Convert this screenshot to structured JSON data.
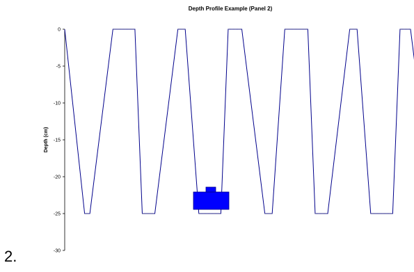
{
  "page_label": "2.",
  "chart_data": {
    "type": "line",
    "title": "Depth Profile Example (Panel 2)",
    "xlabel": "",
    "ylabel": "Depth (cm)",
    "ylim": [
      -30,
      0
    ],
    "yticks": [
      "0",
      "-5",
      "-10",
      "-15",
      "-20",
      "-25",
      "-30"
    ],
    "ytick_values": [
      0,
      -5,
      -10,
      -15,
      -20,
      -25,
      -30
    ],
    "grid": false,
    "legend": "none",
    "series": [
      {
        "color": "#00008b",
        "x": [
          0,
          0.95,
          1.2,
          2.3,
          3.35,
          3.7,
          4.3,
          5.4,
          5.75,
          6.4,
          7.45,
          7.8,
          8.45,
          9.55,
          9.9,
          10.5,
          11.6,
          11.95,
          12.55,
          13.6,
          13.95,
          14.6,
          15.65,
          16.0,
          16.5,
          17.6
        ],
        "y": [
          0,
          -25,
          -25,
          0,
          0,
          -25,
          -25,
          0,
          0,
          -25,
          -25,
          0,
          0,
          -25,
          -25,
          0,
          0,
          -25,
          -25,
          0,
          0,
          -25,
          -25,
          0,
          0,
          -25
        ],
        "values_note_omitted": true
      }
    ],
    "xlim": [
      0,
      16.6
    ],
    "marker_shape": {
      "color": "#0000ff",
      "description": "blue block"
    }
  }
}
